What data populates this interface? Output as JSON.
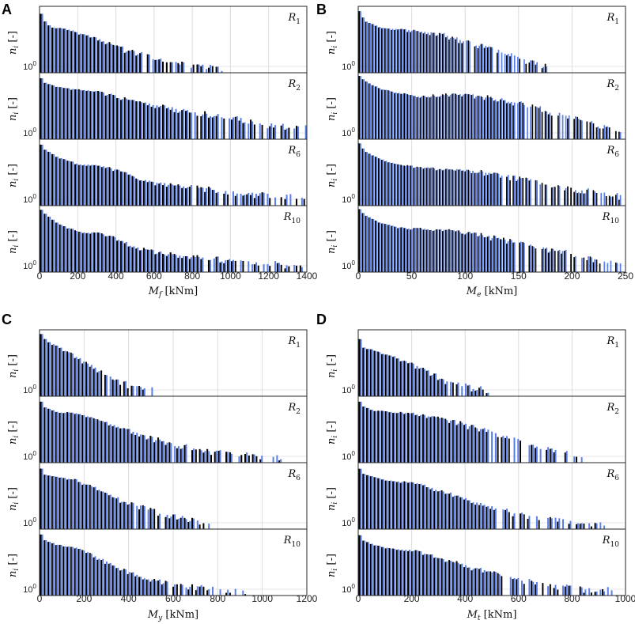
{
  "meta": {
    "y_unit": "[-]",
    "y_tick_base": "10",
    "y_tick_exp": "0",
    "colors": {
      "dark": "#000000",
      "light": "#5b7fe8"
    }
  },
  "chart_data": [
    {
      "panel": "A",
      "type": "bar",
      "xvar": "M",
      "xsub": "f",
      "xunit": "[kNm]",
      "xlim": [
        0,
        1400
      ],
      "xticks": [
        0,
        200,
        400,
        600,
        800,
        1000,
        1200,
        1400
      ],
      "bin_width": 20,
      "subplots": [
        {
          "name": "R",
          "sub": "1",
          "max_x": 960,
          "shape": [
            [
              0,
              1.0
            ],
            [
              20,
              0.82
            ],
            [
              60,
              0.7
            ],
            [
              120,
              0.68
            ],
            [
              200,
              0.62
            ],
            [
              300,
              0.52
            ],
            [
              400,
              0.4
            ],
            [
              500,
              0.3
            ],
            [
              600,
              0.22
            ],
            [
              700,
              0.15
            ],
            [
              800,
              0.1
            ],
            [
              960,
              0.06
            ]
          ]
        },
        {
          "name": "R",
          "sub": "2",
          "max_x": 1400,
          "shape": [
            [
              0,
              1.0
            ],
            [
              20,
              0.88
            ],
            [
              100,
              0.8
            ],
            [
              200,
              0.76
            ],
            [
              320,
              0.72
            ],
            [
              440,
              0.62
            ],
            [
              600,
              0.52
            ],
            [
              800,
              0.42
            ],
            [
              1000,
              0.32
            ],
            [
              1200,
              0.2
            ],
            [
              1400,
              0.15
            ]
          ]
        },
        {
          "name": "R",
          "sub": "6",
          "max_x": 1400,
          "shape": [
            [
              0,
              1.0
            ],
            [
              20,
              0.88
            ],
            [
              100,
              0.74
            ],
            [
              200,
              0.64
            ],
            [
              300,
              0.62
            ],
            [
              400,
              0.55
            ],
            [
              500,
              0.42
            ],
            [
              600,
              0.34
            ],
            [
              800,
              0.28
            ],
            [
              1000,
              0.2
            ],
            [
              1200,
              0.15
            ],
            [
              1400,
              0.12
            ]
          ]
        },
        {
          "name": "R",
          "sub": "10",
          "max_x": 1400,
          "shape": [
            [
              0,
              1.0
            ],
            [
              20,
              0.92
            ],
            [
              100,
              0.74
            ],
            [
              200,
              0.62
            ],
            [
              300,
              0.6
            ],
            [
              400,
              0.52
            ],
            [
              500,
              0.38
            ],
            [
              600,
              0.3
            ],
            [
              800,
              0.24
            ],
            [
              1000,
              0.16
            ],
            [
              1200,
              0.12
            ],
            [
              1400,
              0.08
            ]
          ]
        }
      ]
    },
    {
      "panel": "B",
      "type": "bar",
      "xvar": "M",
      "xsub": "e",
      "xunit": "[kNm]",
      "xlim": [
        0,
        250
      ],
      "xticks": [
        0,
        50,
        100,
        150,
        200,
        250
      ],
      "bin_width": 3,
      "subplots": [
        {
          "name": "R",
          "sub": "1",
          "max_x": 180,
          "shape": [
            [
              0,
              1.0
            ],
            [
              6,
              0.8
            ],
            [
              20,
              0.7
            ],
            [
              40,
              0.66
            ],
            [
              60,
              0.64
            ],
            [
              80,
              0.58
            ],
            [
              100,
              0.48
            ],
            [
              120,
              0.38
            ],
            [
              140,
              0.28
            ],
            [
              160,
              0.16
            ],
            [
              180,
              0.08
            ]
          ]
        },
        {
          "name": "R",
          "sub": "2",
          "max_x": 245,
          "shape": [
            [
              0,
              1.0
            ],
            [
              6,
              0.9
            ],
            [
              20,
              0.78
            ],
            [
              40,
              0.7
            ],
            [
              60,
              0.66
            ],
            [
              80,
              0.68
            ],
            [
              100,
              0.68
            ],
            [
              120,
              0.64
            ],
            [
              150,
              0.54
            ],
            [
              180,
              0.42
            ],
            [
              210,
              0.28
            ],
            [
              245,
              0.12
            ]
          ]
        },
        {
          "name": "R",
          "sub": "6",
          "max_x": 245,
          "shape": [
            [
              0,
              1.0
            ],
            [
              6,
              0.84
            ],
            [
              20,
              0.72
            ],
            [
              40,
              0.62
            ],
            [
              60,
              0.58
            ],
            [
              80,
              0.56
            ],
            [
              100,
              0.54
            ],
            [
              120,
              0.5
            ],
            [
              150,
              0.42
            ],
            [
              180,
              0.32
            ],
            [
              210,
              0.22
            ],
            [
              245,
              0.12
            ]
          ]
        },
        {
          "name": "R",
          "sub": "10",
          "max_x": 245,
          "shape": [
            [
              0,
              1.0
            ],
            [
              6,
              0.88
            ],
            [
              20,
              0.76
            ],
            [
              40,
              0.68
            ],
            [
              60,
              0.66
            ],
            [
              80,
              0.64
            ],
            [
              100,
              0.6
            ],
            [
              120,
              0.54
            ],
            [
              150,
              0.46
            ],
            [
              180,
              0.34
            ],
            [
              210,
              0.22
            ],
            [
              245,
              0.12
            ]
          ]
        }
      ]
    },
    {
      "panel": "C",
      "type": "bar",
      "xvar": "M",
      "xsub": "y",
      "xunit": "[kNm]",
      "xlim": [
        0,
        1200
      ],
      "xticks": [
        0,
        200,
        400,
        600,
        800,
        1000,
        1200
      ],
      "bin_width": 17,
      "subplots": [
        {
          "name": "R",
          "sub": "1",
          "max_x": 500,
          "shape": [
            [
              0,
              1.0
            ],
            [
              30,
              0.86
            ],
            [
              80,
              0.76
            ],
            [
              160,
              0.62
            ],
            [
              240,
              0.44
            ],
            [
              320,
              0.28
            ],
            [
              400,
              0.16
            ],
            [
              500,
              0.08
            ]
          ]
        },
        {
          "name": "R",
          "sub": "2",
          "max_x": 1080,
          "shape": [
            [
              0,
              1.0
            ],
            [
              20,
              0.86
            ],
            [
              80,
              0.78
            ],
            [
              160,
              0.76
            ],
            [
              240,
              0.68
            ],
            [
              320,
              0.58
            ],
            [
              400,
              0.5
            ],
            [
              500,
              0.38
            ],
            [
              600,
              0.28
            ],
            [
              700,
              0.2
            ],
            [
              800,
              0.14
            ],
            [
              900,
              0.1
            ],
            [
              1080,
              0.06
            ]
          ]
        },
        {
          "name": "R",
          "sub": "6",
          "max_x": 780,
          "shape": [
            [
              0,
              1.0
            ],
            [
              20,
              0.84
            ],
            [
              80,
              0.8
            ],
            [
              160,
              0.76
            ],
            [
              240,
              0.64
            ],
            [
              320,
              0.5
            ],
            [
              400,
              0.4
            ],
            [
              500,
              0.3
            ],
            [
              600,
              0.18
            ],
            [
              700,
              0.12
            ],
            [
              780,
              0.08
            ]
          ]
        },
        {
          "name": "R",
          "sub": "10",
          "max_x": 940,
          "shape": [
            [
              0,
              1.0
            ],
            [
              20,
              0.86
            ],
            [
              80,
              0.78
            ],
            [
              160,
              0.74
            ],
            [
              240,
              0.62
            ],
            [
              320,
              0.48
            ],
            [
              400,
              0.36
            ],
            [
              500,
              0.24
            ],
            [
              600,
              0.16
            ],
            [
              700,
              0.12
            ],
            [
              800,
              0.08
            ],
            [
              940,
              0.05
            ]
          ]
        }
      ]
    },
    {
      "panel": "D",
      "type": "bar",
      "xvar": "M",
      "xsub": "t",
      "xunit": "[kNm]",
      "xlim": [
        0,
        1000
      ],
      "xticks": [
        0,
        200,
        400,
        600,
        800,
        1000
      ],
      "bin_width": 14,
      "subplots": [
        {
          "name": "R",
          "sub": "1",
          "max_x": 500,
          "shape": [
            [
              0,
              1.0
            ],
            [
              14,
              0.76
            ],
            [
              60,
              0.7
            ],
            [
              120,
              0.62
            ],
            [
              200,
              0.5
            ],
            [
              280,
              0.32
            ],
            [
              360,
              0.18
            ],
            [
              440,
              0.1
            ],
            [
              500,
              0.06
            ]
          ]
        },
        {
          "name": "R",
          "sub": "2",
          "max_x": 840,
          "shape": [
            [
              0,
              1.0
            ],
            [
              14,
              0.88
            ],
            [
              60,
              0.8
            ],
            [
              120,
              0.78
            ],
            [
              200,
              0.76
            ],
            [
              300,
              0.68
            ],
            [
              400,
              0.58
            ],
            [
              500,
              0.46
            ],
            [
              600,
              0.34
            ],
            [
              700,
              0.2
            ],
            [
              800,
              0.12
            ],
            [
              840,
              0.08
            ]
          ]
        },
        {
          "name": "R",
          "sub": "6",
          "max_x": 920,
          "shape": [
            [
              0,
              1.0
            ],
            [
              14,
              0.86
            ],
            [
              60,
              0.8
            ],
            [
              120,
              0.74
            ],
            [
              200,
              0.72
            ],
            [
              300,
              0.6
            ],
            [
              400,
              0.46
            ],
            [
              500,
              0.34
            ],
            [
              600,
              0.22
            ],
            [
              700,
              0.16
            ],
            [
              800,
              0.1
            ],
            [
              920,
              0.06
            ]
          ]
        },
        {
          "name": "R",
          "sub": "10",
          "max_x": 940,
          "shape": [
            [
              0,
              1.0
            ],
            [
              14,
              0.86
            ],
            [
              60,
              0.78
            ],
            [
              120,
              0.72
            ],
            [
              200,
              0.7
            ],
            [
              300,
              0.58
            ],
            [
              400,
              0.46
            ],
            [
              500,
              0.34
            ],
            [
              600,
              0.24
            ],
            [
              700,
              0.16
            ],
            [
              800,
              0.1
            ],
            [
              940,
              0.06
            ]
          ]
        }
      ]
    }
  ]
}
